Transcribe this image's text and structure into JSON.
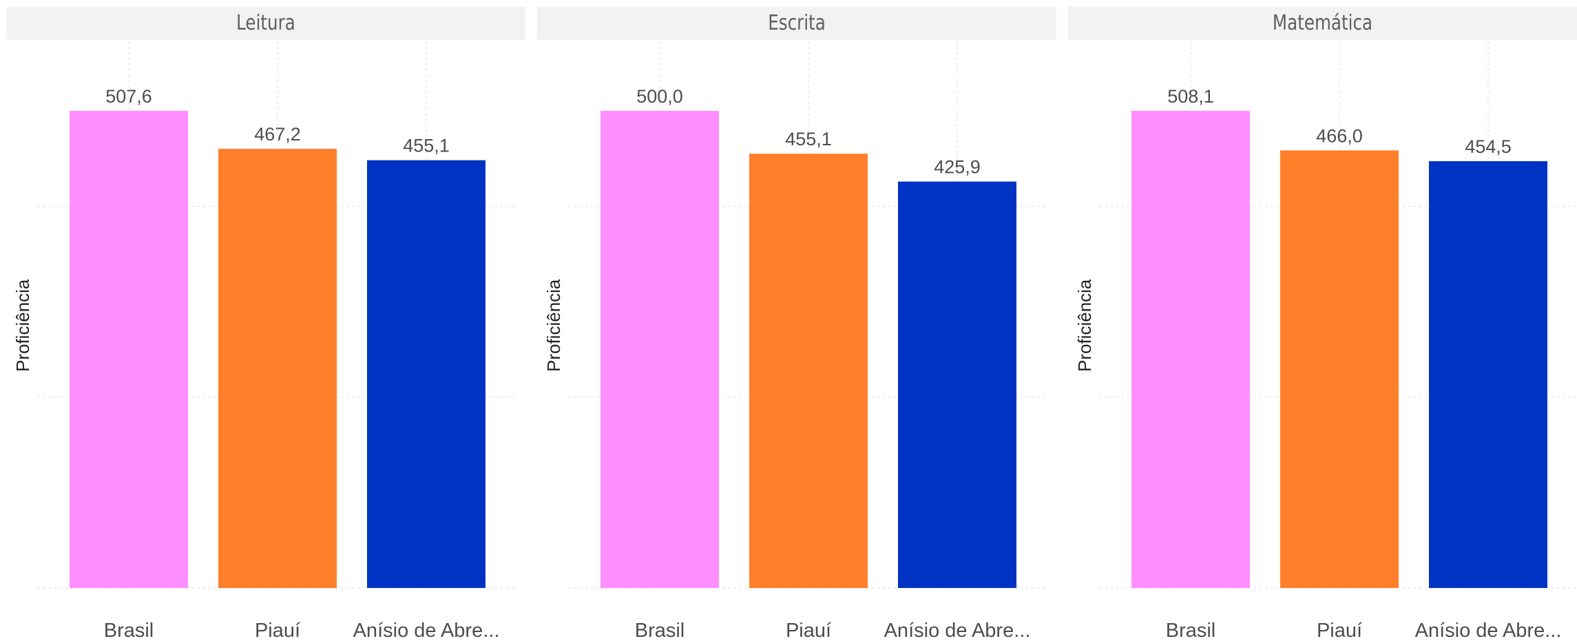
{
  "chart_data": [
    {
      "type": "bar",
      "title": "Leitura",
      "ylabel": "Proficiência",
      "categories": [
        "Brasil",
        "Piauí",
        "Anísio de Abre..."
      ],
      "values": [
        507.6,
        467.2,
        455.1
      ],
      "value_labels": [
        "507,6",
        "467,2",
        "455,1"
      ],
      "ylim": [
        0,
        507.6
      ],
      "grid": true,
      "colors": [
        "#ff8fff",
        "#ff7f2a",
        "#0033c4"
      ]
    },
    {
      "type": "bar",
      "title": "Escrita",
      "ylabel": "Proficiência",
      "categories": [
        "Brasil",
        "Piauí",
        "Anísio de Abre..."
      ],
      "values": [
        500.0,
        455.1,
        425.9
      ],
      "value_labels": [
        "500,0",
        "455,1",
        "425,9"
      ],
      "ylim": [
        0,
        500.0
      ],
      "grid": true,
      "colors": [
        "#ff8fff",
        "#ff7f2a",
        "#0033c4"
      ]
    },
    {
      "type": "bar",
      "title": "Matemática",
      "ylabel": "Proficiência",
      "categories": [
        "Brasil",
        "Piauí",
        "Anísio de Abre..."
      ],
      "values": [
        508.1,
        466.0,
        454.5
      ],
      "value_labels": [
        "508,1",
        "466,0",
        "454,5"
      ],
      "ylim": [
        0,
        508.1
      ],
      "grid": true,
      "colors": [
        "#ff8fff",
        "#ff7f2a",
        "#0033c4"
      ]
    }
  ]
}
